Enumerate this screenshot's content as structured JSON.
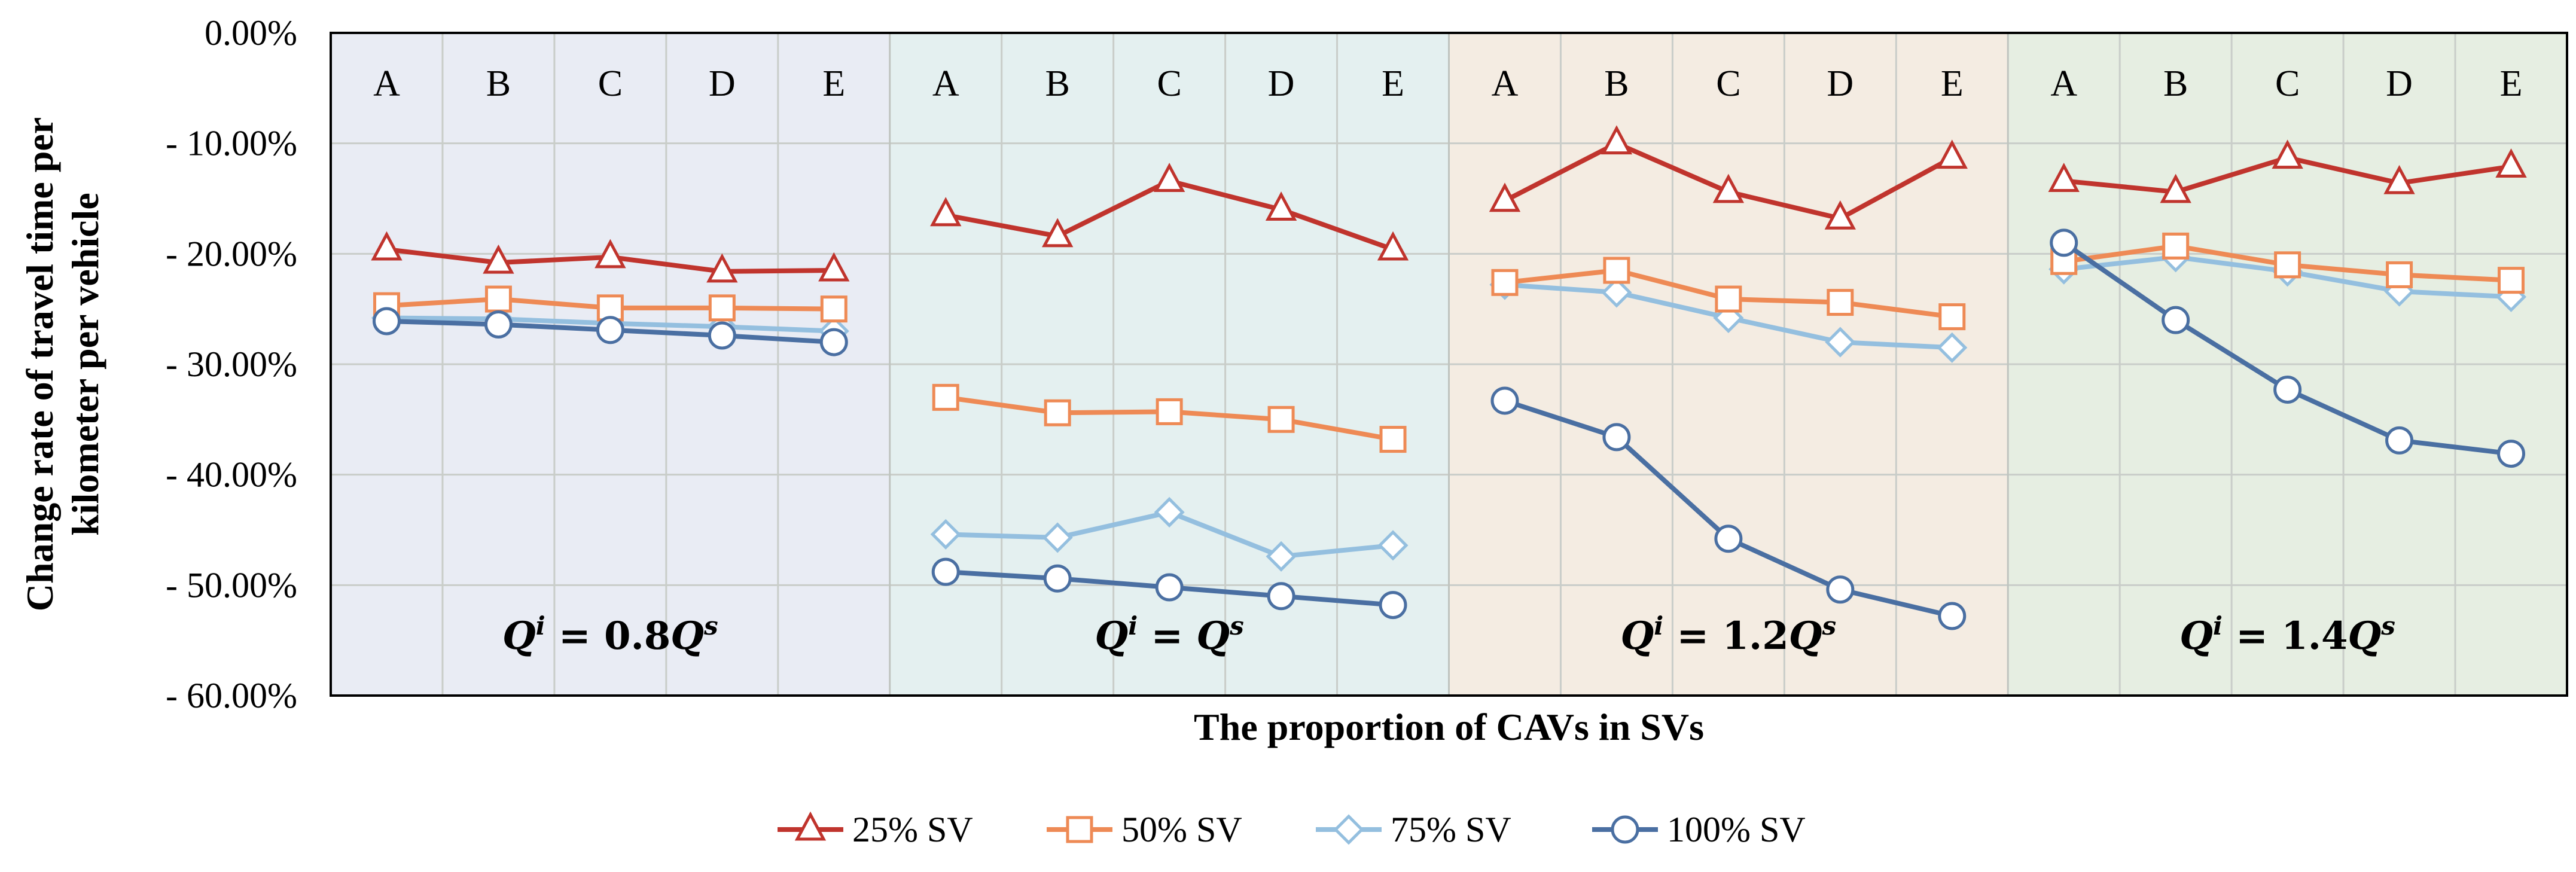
{
  "chart_data": {
    "type": "line",
    "ylabel": "Change rate of travel time per kilometer per vehicle",
    "xlabel": "The proportion of CAVs in SVs",
    "ylim": [
      -60,
      0
    ],
    "y_ticks": [
      0,
      -10,
      -20,
      -30,
      -40,
      -50,
      -60
    ],
    "y_tick_labels": [
      "0.00%",
      "- 10.00%",
      "- 20.00%",
      "- 30.00%",
      "- 40.00%",
      "- 50.00%",
      "- 60.00%"
    ],
    "categories": [
      "A",
      "B",
      "C",
      "D",
      "E"
    ],
    "panels": [
      {
        "label": "Qi = 0.8Qs",
        "label_parts": {
          "q1": "Q",
          "sup1": "i",
          "mid": " = 0.8",
          "q2": "Q",
          "sup2": "s"
        },
        "background": "#e9ecf4",
        "series": [
          {
            "name": "25% SV",
            "values": [
              -19.6,
              -20.8,
              -20.3,
              -21.6,
              -21.5
            ]
          },
          {
            "name": "50% SV",
            "values": [
              -24.7,
              -24.1,
              -24.9,
              -24.9,
              -25.0
            ]
          },
          {
            "name": "75% SV",
            "values": [
              -25.8,
              -25.9,
              -26.3,
              -26.6,
              -27.0
            ]
          },
          {
            "name": "100% SV",
            "values": [
              -26.1,
              -26.4,
              -26.9,
              -27.4,
              -28.0
            ]
          }
        ]
      },
      {
        "label": "Qi = Qs",
        "label_parts": {
          "q1": "Q",
          "sup1": "i",
          "mid": " = ",
          "q2": "Q",
          "sup2": "s"
        },
        "background": "#e4f0f0",
        "series": [
          {
            "name": "25% SV",
            "values": [
              -16.5,
              -18.4,
              -13.4,
              -16.0,
              -19.6
            ]
          },
          {
            "name": "50% SV",
            "values": [
              -33.0,
              -34.4,
              -34.3,
              -35.0,
              -36.8
            ]
          },
          {
            "name": "75% SV",
            "values": [
              -45.4,
              -45.7,
              -43.4,
              -47.4,
              -46.4
            ]
          },
          {
            "name": "100% SV",
            "values": [
              -48.8,
              -49.4,
              -50.2,
              -51.0,
              -51.8
            ]
          }
        ]
      },
      {
        "label": "Qi = 1.2Qs",
        "label_parts": {
          "q1": "Q",
          "sup1": "i",
          "mid": " = 1.2",
          "q2": "Q",
          "sup2": "s"
        },
        "background": "#f4ece2",
        "series": [
          {
            "name": "25% SV",
            "values": [
              -15.2,
              -10.0,
              -14.4,
              -16.8,
              -11.3
            ]
          },
          {
            "name": "50% SV",
            "values": [
              -22.6,
              -21.5,
              -24.1,
              -24.4,
              -25.7
            ]
          },
          {
            "name": "75% SV",
            "values": [
              -22.8,
              -23.5,
              -25.8,
              -28.0,
              -28.5
            ]
          },
          {
            "name": "100% SV",
            "values": [
              -33.3,
              -36.6,
              -45.8,
              -50.4,
              -52.8
            ]
          }
        ]
      },
      {
        "label": "Qi = 1.4Qs",
        "label_parts": {
          "q1": "Q",
          "sup1": "i",
          "mid": " = 1.4",
          "q2": "Q",
          "sup2": "s"
        },
        "background": "#e6eee2",
        "series": [
          {
            "name": "25% SV",
            "values": [
              -13.4,
              -14.4,
              -11.3,
              -13.6,
              -12.1
            ]
          },
          {
            "name": "50% SV",
            "values": [
              -20.7,
              -19.3,
              -21.0,
              -21.9,
              -22.4
            ]
          },
          {
            "name": "75% SV",
            "values": [
              -21.4,
              -20.3,
              -21.6,
              -23.4,
              -23.9
            ]
          },
          {
            "name": "100% SV",
            "values": [
              -19.0,
              -26.0,
              -32.3,
              -36.9,
              -38.1
            ]
          }
        ]
      }
    ],
    "legend": [
      {
        "name": "25% SV",
        "color": "#c0342d",
        "marker": "triangle"
      },
      {
        "name": "50% SV",
        "color": "#ee8a55",
        "marker": "square"
      },
      {
        "name": "75% SV",
        "color": "#94bfdf",
        "marker": "diamond"
      },
      {
        "name": "100% SV",
        "color": "#4a6fa2",
        "marker": "circle"
      }
    ],
    "legend_position": "bottom-center",
    "grid": true
  }
}
